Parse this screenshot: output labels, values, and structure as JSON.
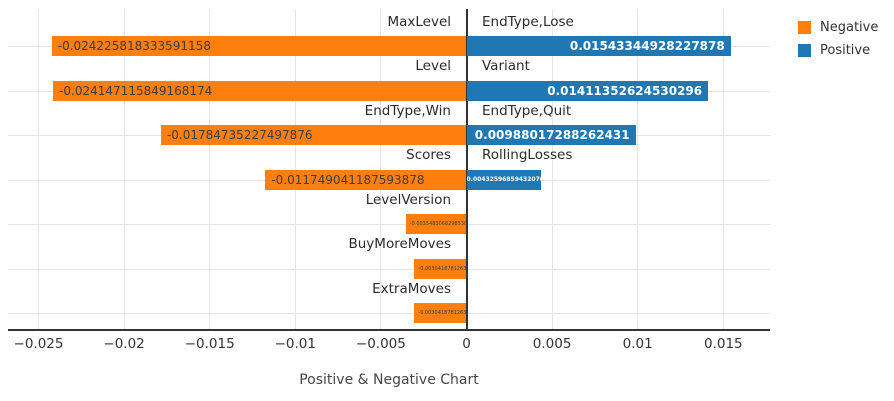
{
  "title": "Positive & Negative Chart",
  "colors": {
    "negative": "#ff7f0e",
    "positive": "#1f77b4",
    "grid": "#e5e5e5",
    "axis": "#333333",
    "neg_bar_text": "#3d3d3d",
    "pos_bar_text": "#ffffff",
    "category_label": "#2b2b2b"
  },
  "legend": {
    "items": [
      {
        "label": "Negative",
        "color": "#ff7f0e"
      },
      {
        "label": "Positive",
        "color": "#1f77b4"
      }
    ]
  },
  "chart_data": {
    "type": "bar",
    "orientation": "horizontal",
    "title": "Positive & Negative Chart",
    "legend_position": "top-right",
    "grid": true,
    "xlim": [
      -0.0268,
      0.0177
    ],
    "x_ticks": [
      -0.025,
      -0.02,
      -0.015,
      -0.01,
      -0.005,
      0,
      0.005,
      0.01,
      0.015
    ],
    "x_tick_labels": [
      "−0.025",
      "−0.02",
      "−0.015",
      "−0.01",
      "−0.005",
      "0",
      "0.005",
      "0.01",
      "0.015"
    ],
    "series": [
      {
        "name": "Negative",
        "color": "#ff7f0e"
      },
      {
        "name": "Positive",
        "color": "#1f77b4"
      }
    ],
    "rows": [
      {
        "neg_label": "MaxLevel",
        "neg_value": -0.024225818333591158,
        "neg_text": "-0.024225818333591158",
        "pos_label": "EndType,Lose",
        "pos_value": 0.01543344928227878,
        "pos_text": "0.01543344928227878"
      },
      {
        "neg_label": "Level",
        "neg_value": -0.024147115849168174,
        "neg_text": "-0.024147115849168174",
        "pos_label": "Variant",
        "pos_value": 0.01411352624530296,
        "pos_text": "0.01411352624530296"
      },
      {
        "neg_label": "EndType,Win",
        "neg_value": -0.01784735227497876,
        "neg_text": "-0.01784735227497876",
        "pos_label": "EndType,Quit",
        "pos_value": 0.00988017288262431,
        "pos_text": "0.00988017288262431"
      },
      {
        "neg_label": "Scores",
        "neg_value": -0.011749041187593878,
        "neg_text": "-0.011749041187593878",
        "pos_label": "RollingLosses",
        "pos_value": 0.004325968594320708,
        "pos_text": "0.004325968594320708"
      },
      {
        "neg_label": "LevelVersion",
        "neg_value": -0.003548306829853087,
        "neg_text": "-0.003548306829853087",
        "pos_label": null,
        "pos_value": null,
        "pos_text": null
      },
      {
        "neg_label": "BuyMoreMoves",
        "neg_value": -0.003041878126369975,
        "neg_text": "-0.003041878126369975",
        "pos_label": null,
        "pos_value": null,
        "pos_text": null
      },
      {
        "neg_label": "ExtraMoves",
        "neg_value": -0.003041878126369975,
        "neg_text": "-0.003041878126369975",
        "pos_label": null,
        "pos_value": null,
        "pos_text": null
      }
    ]
  }
}
